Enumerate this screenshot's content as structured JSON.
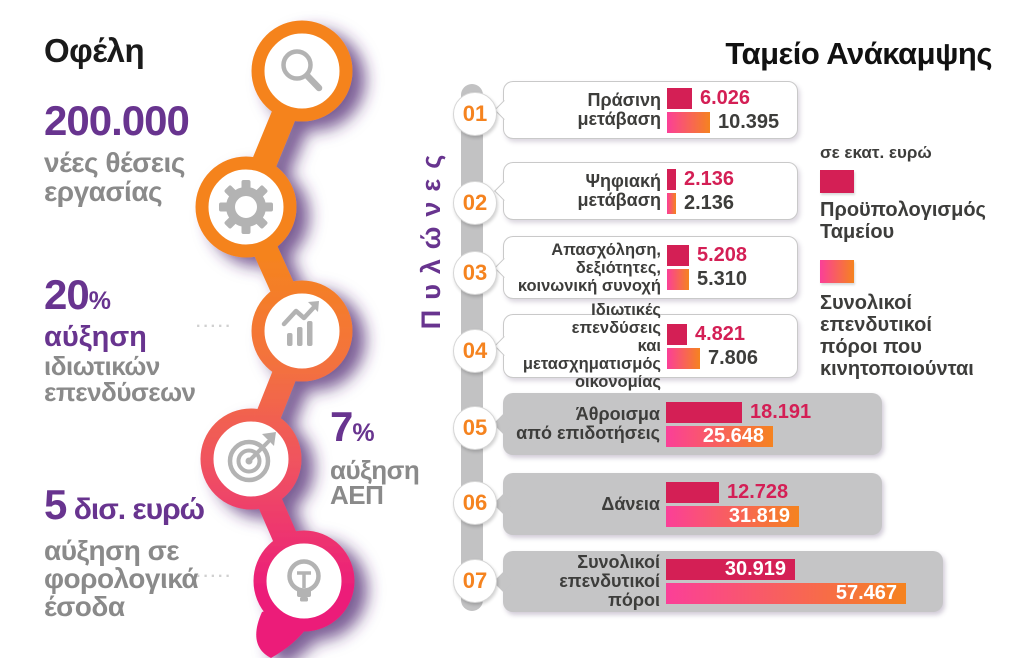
{
  "header": {
    "left_title": "Οφέλη",
    "right_title": "Ταμείο Ανάκαμψης"
  },
  "benefits": {
    "jobs": {
      "big": "200.000",
      "line1": "νέες θέσεις",
      "line2": "εργασίας"
    },
    "private_investments": {
      "big": "20",
      "pct": "%",
      "accent_line": "αύξηση",
      "line1": "ιδιωτικών",
      "line2": "επενδύσεων"
    },
    "gdp": {
      "big": "7",
      "pct": "%",
      "line1": "αύξηση",
      "line2": "ΑΕΠ"
    },
    "tax_revenue": {
      "big": "5",
      "unit": " δισ. ευρώ",
      "line1": "αύξηση σε",
      "line2": "φορολογικά",
      "line3": "έσοδα"
    }
  },
  "decorations": {
    "dots1": "·····",
    "dots2": "·····"
  },
  "icons": [
    "magnifier-icon",
    "gear-icon",
    "growth-chart-icon",
    "target-icon",
    "lightbulb-icon"
  ],
  "pillars_axis_label": "Πυλώνες",
  "legend": {
    "unit": "σε εκατ. ευρώ",
    "budget_line1": "Προϋπολογισμός",
    "budget_line2": "Ταμείου",
    "total_line1": "Συνολικοί",
    "total_line2": "επενδυτικοί",
    "total_line3": "πόροι που",
    "total_line4": "κινητοποιούνται"
  },
  "colors": {
    "orange": "#f5831f",
    "magenta": "#ec1e79",
    "crimson": "#d41f55",
    "purple": "#68348f",
    "dark_text": "#3d3d3b",
    "gray_text": "#8a8a8a"
  },
  "chart_data": {
    "type": "bar",
    "orientation": "horizontal",
    "title": "Ταμείο Ανάκαμψης",
    "unit": "σε εκατ. ευρώ",
    "legend_position": "right",
    "categories": [
      "Πράσινη μετάβαση",
      "Ψηφιακή μετάβαση",
      "Απασχόληση, δεξιότητες, κοινωνική συνοχή",
      "Ιδιωτικές επενδύσεις και μετασχηματισμός οικονομίας",
      "Άθροισμα από επιδοτήσεις",
      "Δάνεια",
      "Συνολικοί επενδυτικοί πόροι"
    ],
    "series": [
      {
        "name": "Προϋπολογισμός Ταμείου",
        "values": [
          6026,
          2136,
          5208,
          4821,
          18191,
          12728,
          30919
        ]
      },
      {
        "name": "Συνολικοί επενδυτικοί πόροι που κινητοποιούνται",
        "values": [
          10395,
          2136,
          5310,
          7806,
          25648,
          31819,
          57467
        ]
      }
    ]
  },
  "pillars": [
    {
      "num": "01",
      "lines": [
        "Πράσινη",
        "μετάβαση"
      ],
      "budget_value": 6026,
      "budget_label": "6.026",
      "total_value": 10395,
      "total_label": "10.395",
      "highlight": false
    },
    {
      "num": "02",
      "lines": [
        "Ψηφιακή",
        "μετάβαση"
      ],
      "budget_value": 2136,
      "budget_label": "2.136",
      "total_value": 2136,
      "total_label": "2.136",
      "highlight": false
    },
    {
      "num": "03",
      "lines": [
        "Απασχόληση,",
        "δεξιότητες,",
        "κοινωνική συνοχή"
      ],
      "budget_value": 5208,
      "budget_label": "5.208",
      "total_value": 5310,
      "total_label": "5.310",
      "highlight": false
    },
    {
      "num": "04",
      "lines": [
        "Ιδιωτικές επενδύσεις",
        "και μετασχηματισμός",
        "οικονομίας"
      ],
      "budget_value": 4821,
      "budget_label": "4.821",
      "total_value": 7806,
      "total_label": "7.806",
      "highlight": false
    },
    {
      "num": "05",
      "lines": [
        "Άθροισμα",
        "από επιδοτήσεις"
      ],
      "budget_value": 18191,
      "budget_label": "18.191",
      "total_value": 25648,
      "total_label": "25.648",
      "highlight": true
    },
    {
      "num": "06",
      "lines": [
        "Δάνεια"
      ],
      "budget_value": 12728,
      "budget_label": "12.728",
      "total_value": 31819,
      "total_label": "31.819",
      "highlight": true
    },
    {
      "num": "07",
      "lines": [
        "Συνολικοί",
        "επενδυτικοί πόροι"
      ],
      "budget_value": 30919,
      "budget_label": "30.919",
      "total_value": 57467,
      "total_label": "57.467",
      "highlight": true
    }
  ]
}
